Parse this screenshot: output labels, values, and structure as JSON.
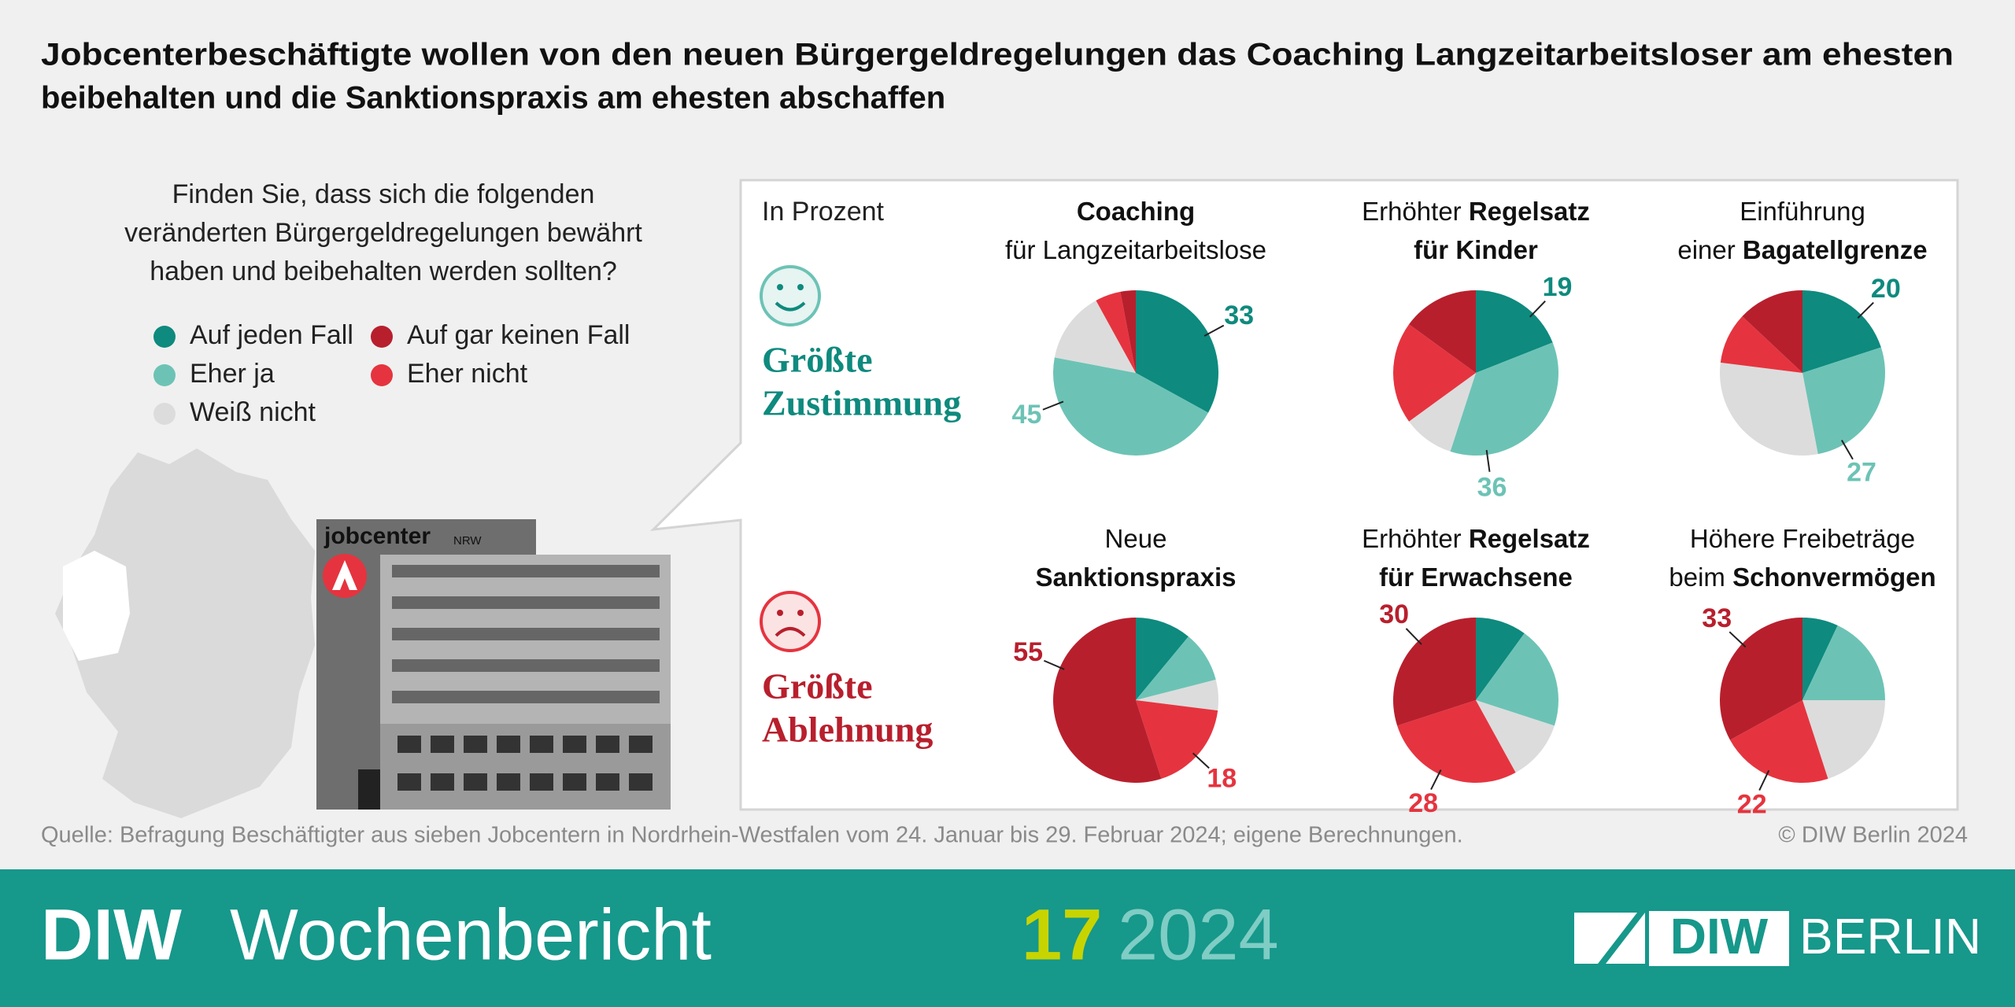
{
  "header": {
    "title_lines": [
      "Jobcenterbeschäftigte wollen von den neuen Bürgergeldregelungen das Coaching Langzeitarbeitsloser am ehesten",
      "beibehalten und die Sanktionspraxis am ehesten abschaffen"
    ]
  },
  "question_lines": [
    "Finden Sie, dass sich die folgenden",
    "veränderten Bürgergeldregelungen bewährt",
    "haben und beibehalten werden sollten?"
  ],
  "legend": [
    {
      "name": "Auf jeden Fall",
      "color": "#0e8a7e"
    },
    {
      "name": "Eher ja",
      "color": "#6cc3b5"
    },
    {
      "name": "Weiß nicht",
      "color": "#dcdcdc"
    },
    {
      "name": "Eher nicht",
      "color": "#e5343f"
    },
    {
      "name": "Auf gar keinen Fall",
      "color": "#b81f2d"
    }
  ],
  "unit": "In Prozent",
  "groups": [
    {
      "lines": [
        "Größte",
        "Zustimmung"
      ],
      "color": "#0e8a7e"
    },
    {
      "lines": [
        "Größte",
        "Ablehnung"
      ],
      "color": "#b81f2d"
    }
  ],
  "building": {
    "name": "jobcenter",
    "region": "NRW"
  },
  "chart_data": [
    {
      "type": "pie",
      "title_lines": [
        [
          {
            "text": "Coaching",
            "bold": true
          }
        ],
        [
          {
            "text": "für Langzeitarbeitslose",
            "bold": false
          }
        ]
      ],
      "values": [
        33,
        45,
        14,
        5,
        3
      ],
      "labeled": [
        0,
        1
      ]
    },
    {
      "type": "pie",
      "title_lines": [
        [
          {
            "text": "Erhöhter ",
            "bold": false
          },
          {
            "text": "Regelsatz",
            "bold": true
          }
        ],
        [
          {
            "text": "für Kinder",
            "bold": true
          }
        ]
      ],
      "values": [
        19,
        36,
        10,
        20,
        15
      ],
      "labeled": [
        0,
        1
      ]
    },
    {
      "type": "pie",
      "title_lines": [
        [
          {
            "text": "Einführung",
            "bold": false
          }
        ],
        [
          {
            "text": "einer ",
            "bold": false
          },
          {
            "text": "Bagatellgrenze",
            "bold": true
          }
        ]
      ],
      "values": [
        20,
        27,
        30,
        10,
        13
      ],
      "labeled": [
        0,
        1
      ]
    },
    {
      "type": "pie",
      "title_lines": [
        [
          {
            "text": "Neue",
            "bold": false
          }
        ],
        [
          {
            "text": "Sanktionspraxis",
            "bold": true
          }
        ]
      ],
      "values": [
        11,
        10,
        6,
        18,
        55
      ],
      "labeled": [
        3,
        4
      ]
    },
    {
      "type": "pie",
      "title_lines": [
        [
          {
            "text": "Erhöhter ",
            "bold": false
          },
          {
            "text": "Regelsatz",
            "bold": true
          }
        ],
        [
          {
            "text": "für Erwachsene",
            "bold": true
          }
        ]
      ],
      "values": [
        10,
        20,
        12,
        28,
        30
      ],
      "labeled": [
        3,
        4
      ]
    },
    {
      "type": "pie",
      "title_lines": [
        [
          {
            "text": "Höhere Freibeträge",
            "bold": false
          }
        ],
        [
          {
            "text": "beim ",
            "bold": false
          },
          {
            "text": "Schonvermögen",
            "bold": true
          }
        ]
      ],
      "values": [
        7,
        18,
        20,
        22,
        33
      ],
      "labeled": [
        3,
        4
      ]
    }
  ],
  "source": "Quelle: Befragung Beschäftigter aus sieben Jobcentern in Nordrhein-Westfalen vom 24. Januar bis 29. Februar 2024; eigene Berechnungen.",
  "copyright": "© DIW Berlin 2024",
  "footer": {
    "brand": "DIW",
    "publication": "Wochenbericht",
    "issue": "17",
    "year": "2024",
    "logo_left": "DIW",
    "logo_right": "BERLIN"
  }
}
